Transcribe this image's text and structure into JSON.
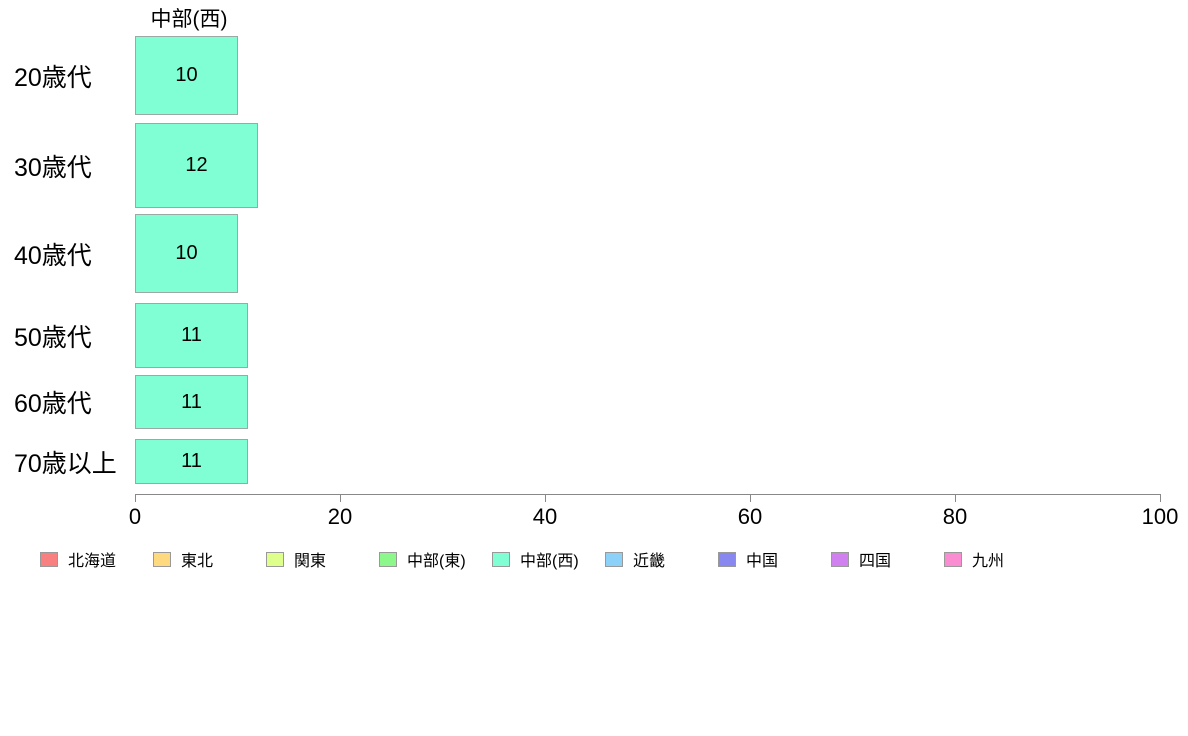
{
  "chart_data": {
    "type": "bar",
    "orientation": "horizontal",
    "title": "中部(西)",
    "categories": [
      "20歳代",
      "30歳代",
      "40歳代",
      "50歳代",
      "60歳代",
      "70歳以上"
    ],
    "values": [
      10,
      12,
      10,
      11,
      11,
      11
    ],
    "xlim": [
      0,
      100
    ],
    "xticks": [
      "0",
      "20",
      "40",
      "60",
      "80",
      "100"
    ],
    "grid": "off",
    "bar_color": "#80FFD4",
    "bar_border_color": "#9AA9A5",
    "axis_color": "#888888",
    "legend_position": "bottom",
    "legend": [
      {
        "label": "北海道",
        "color": "#F98080"
      },
      {
        "label": "東北",
        "color": "#FFD980"
      },
      {
        "label": "関東",
        "color": "#DFFF8C"
      },
      {
        "label": "中部(東)",
        "color": "#8CF88C"
      },
      {
        "label": "中部(西)",
        "color": "#80FFD4"
      },
      {
        "label": "近畿",
        "color": "#8CD2F8"
      },
      {
        "label": "中国",
        "color": "#8888F0"
      },
      {
        "label": "四国",
        "color": "#D080F0"
      },
      {
        "label": "九州",
        "color": "#FA8CD2"
      }
    ]
  }
}
